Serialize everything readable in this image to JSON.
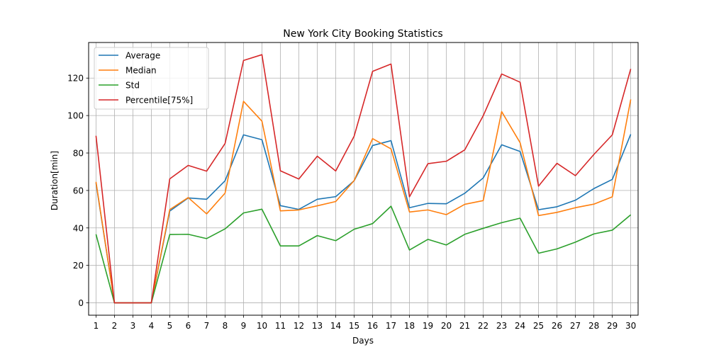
{
  "chart_data": {
    "type": "line",
    "title": "New York City Booking Statistics",
    "xlabel": "Days",
    "ylabel": "Duration[min]",
    "x": [
      1,
      2,
      3,
      4,
      5,
      6,
      7,
      8,
      9,
      10,
      11,
      12,
      13,
      14,
      15,
      16,
      17,
      18,
      19,
      20,
      21,
      22,
      23,
      24,
      25,
      26,
      27,
      28,
      29,
      30
    ],
    "xlim": [
      0.6,
      30.4
    ],
    "ylim": [
      -6.6,
      139
    ],
    "yticks": [
      0,
      20,
      40,
      60,
      80,
      100,
      120
    ],
    "grid": true,
    "legend_position": "top-left",
    "series": [
      {
        "name": "Average",
        "color": "#1f77b4",
        "values": [
          64,
          0,
          0,
          0,
          49,
          56,
          55.3,
          65.2,
          89.7,
          87.1,
          51.9,
          49.9,
          55.3,
          56.7,
          65.2,
          84,
          86.6,
          50.8,
          53.1,
          52.9,
          58.5,
          66.7,
          84.4,
          80.8,
          49.7,
          51.3,
          54.8,
          61,
          65.9,
          90
        ]
      },
      {
        "name": "Median",
        "color": "#ff7f0e",
        "values": [
          64.6,
          0,
          0,
          0,
          49.8,
          56.2,
          47.5,
          58.6,
          107.6,
          97,
          49.1,
          49.6,
          51.8,
          54.1,
          65.3,
          87.7,
          82.2,
          48.5,
          49.6,
          47.1,
          52.6,
          54.6,
          102.1,
          85.5,
          46.6,
          48.3,
          50.8,
          52.7,
          56.6,
          108.6
        ]
      },
      {
        "name": "Std",
        "color": "#2ca02c",
        "values": [
          36.6,
          0,
          0,
          0,
          36.5,
          36.6,
          34.3,
          39.5,
          48,
          50,
          30.4,
          30.4,
          35.9,
          33.2,
          39.3,
          42.3,
          51.6,
          28.2,
          33.9,
          30.9,
          36.6,
          39.8,
          42.8,
          45.2,
          26.5,
          28.8,
          32.4,
          36.8,
          38.8,
          47
        ]
      },
      {
        "name": "Percentile[75%]",
        "color": "#d62728",
        "values": [
          89.2,
          0,
          0,
          0,
          66.2,
          73.4,
          70.3,
          85.1,
          129.4,
          132.5,
          70.5,
          66.1,
          78.3,
          70.4,
          89,
          123.6,
          127.5,
          56.6,
          74.3,
          75.6,
          81.7,
          99.9,
          122.2,
          117.8,
          62.3,
          74.5,
          67.9,
          79.2,
          89.7,
          124.9
        ]
      }
    ]
  }
}
